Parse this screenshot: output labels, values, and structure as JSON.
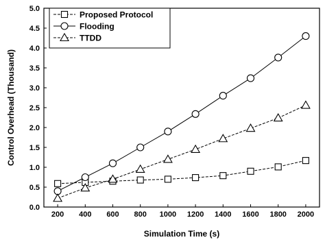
{
  "chart_data": {
    "type": "line",
    "xlabel": "Simulation Time (s)",
    "ylabel": "Control Overhead (Thousand)",
    "x": [
      200,
      400,
      600,
      800,
      1000,
      1200,
      1400,
      1600,
      1800,
      2000
    ],
    "xlim": [
      100,
      2100
    ],
    "ylim": [
      0,
      5.0
    ],
    "xticks": [
      200,
      400,
      600,
      800,
      1000,
      1200,
      1400,
      1600,
      1800,
      2000
    ],
    "yticks": [
      0.0,
      0.5,
      1.0,
      1.5,
      2.0,
      2.5,
      3.0,
      3.5,
      4.0,
      4.5,
      5.0
    ],
    "grid": false,
    "legend_position": "top-left",
    "series": [
      {
        "name": "Proposed Protocol",
        "marker": "square",
        "line_style": "dashed",
        "values": [
          0.59,
          0.62,
          0.65,
          0.68,
          0.7,
          0.74,
          0.79,
          0.9,
          1.01,
          1.17
        ]
      },
      {
        "name": "Flooding",
        "marker": "circle",
        "line_style": "solid",
        "values": [
          0.4,
          0.75,
          1.1,
          1.5,
          1.9,
          2.34,
          2.8,
          3.24,
          3.76,
          4.3
        ]
      },
      {
        "name": "TTDD",
        "marker": "triangle",
        "line_style": "dashed",
        "values": [
          0.22,
          0.48,
          0.7,
          0.95,
          1.2,
          1.45,
          1.72,
          1.98,
          2.24,
          2.56
        ]
      }
    ]
  }
}
